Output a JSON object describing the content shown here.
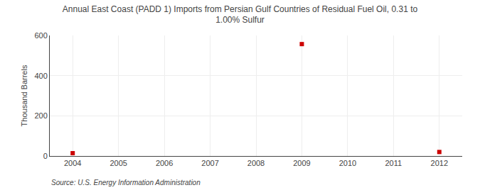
{
  "chart_data": {
    "type": "scatter",
    "title": "Annual East Coast (PADD 1) Imports from Persian Gulf Countries of Residual Fuel Oil, 0.31 to\n1.00% Sulfur",
    "ylabel": "Thousand Barrels",
    "annotations": [
      "Source: U.S. Energy Information Administration"
    ],
    "x": [
      2004,
      2009,
      2012
    ],
    "values": [
      14,
      557,
      20
    ],
    "color": "#cc0000",
    "marker": "square",
    "xlim": [
      2003.5,
      2012.5
    ],
    "ylim": [
      0,
      600
    ],
    "xticks": [
      2004,
      2005,
      2006,
      2007,
      2008,
      2009,
      2010,
      2011,
      2012
    ],
    "yticks": [
      0,
      200,
      400,
      600
    ],
    "grid": true
  }
}
